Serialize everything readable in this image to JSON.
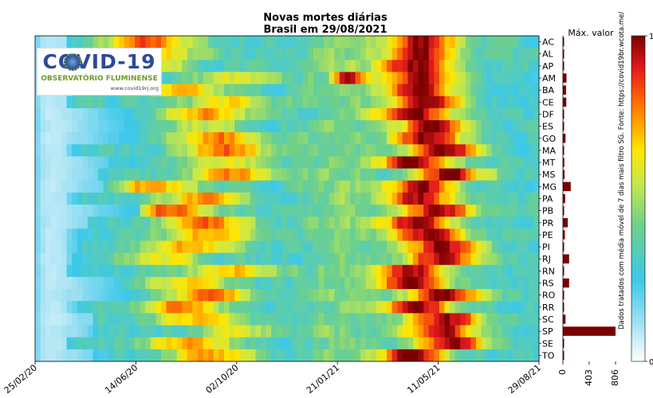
{
  "chart_data": [
    {
      "type": "heatmap",
      "title": "Novas mortes diárias",
      "subtitle": "Brasil em 29/08/2021",
      "x_tick_labels": [
        "25/02/20",
        "14/06/20",
        "02/10/20",
        "21/01/21",
        "11/05/21",
        "29/08/21"
      ],
      "y_categories": [
        "AC",
        "AL",
        "AP",
        "AM",
        "BA",
        "CE",
        "DF",
        "ES",
        "GO",
        "MA",
        "MT",
        "MS",
        "MG",
        "PA",
        "PB",
        "PR",
        "PE",
        "PI",
        "RJ",
        "RN",
        "RS",
        "RO",
        "RR",
        "SC",
        "SP",
        "SE",
        "TO"
      ],
      "colormap": "jet (white → cyan → green → yellow → red → dark red)",
      "colorbar": {
        "min": 0,
        "max": 1
      },
      "colors": {
        "low": "#ffffff",
        "high": "#7a0000"
      }
    },
    {
      "type": "bar",
      "orientation": "horizontal",
      "title": "Máx. valor",
      "categories": [
        "AC",
        "AL",
        "AP",
        "AM",
        "BA",
        "CE",
        "DF",
        "ES",
        "GO",
        "MA",
        "MT",
        "MS",
        "MG",
        "PA",
        "PB",
        "PR",
        "PE",
        "PI",
        "RJ",
        "RN",
        "RS",
        "RO",
        "RR",
        "SC",
        "SP",
        "SE",
        "TO"
      ],
      "values": [
        8,
        15,
        6,
        55,
        48,
        52,
        12,
        15,
        40,
        18,
        22,
        25,
        120,
        35,
        15,
        75,
        30,
        12,
        95,
        12,
        95,
        10,
        8,
        40,
        806,
        10,
        8
      ],
      "x_tick_labels": [
        "0",
        "403",
        "806"
      ],
      "xlim": [
        0,
        806
      ],
      "bar_color": "#7a0000"
    }
  ],
  "annotation": "Dados tratados com média móvel de 7 dias mais filtro SG. Fonte: https://covid19br.wcota.me/",
  "logo": {
    "title": "COVID-19",
    "subtitle": "OBSERVATÓRIO FLUMINENSE",
    "url": "www.covid19rj.org"
  }
}
